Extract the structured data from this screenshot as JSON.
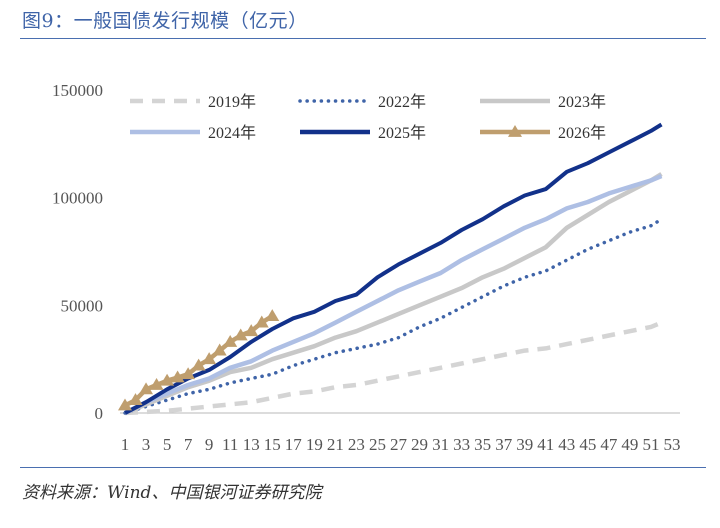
{
  "title": "图9：一般国债发行规模（亿元）",
  "source": "资料来源：Wind、中国银河证券研究院",
  "chart_data": {
    "type": "line",
    "ylim": [
      0,
      150000
    ],
    "yticks": [
      0,
      50000,
      100000,
      150000
    ],
    "xlim": [
      1,
      53
    ],
    "xticks": [
      1,
      3,
      5,
      7,
      9,
      11,
      13,
      15,
      17,
      19,
      21,
      23,
      25,
      27,
      29,
      31,
      33,
      35,
      37,
      39,
      41,
      43,
      45,
      47,
      49,
      51,
      53
    ],
    "grid": false,
    "legend_position": "top",
    "series": [
      {
        "name": "2019年",
        "color": "#d4d4d4",
        "style": "dashed",
        "x": [
          1,
          3,
          5,
          7,
          9,
          11,
          13,
          15,
          17,
          19,
          21,
          23,
          25,
          27,
          29,
          31,
          33,
          35,
          37,
          39,
          41,
          43,
          45,
          47,
          49,
          51,
          52
        ],
        "values": [
          0,
          500,
          1000,
          2000,
          3000,
          4000,
          5000,
          7000,
          9000,
          10000,
          12000,
          13000,
          15000,
          17000,
          19000,
          21000,
          23000,
          25000,
          27000,
          29000,
          30000,
          32000,
          34000,
          36000,
          38000,
          40000,
          42000
        ]
      },
      {
        "name": "2022年",
        "color": "#3f64a8",
        "style": "dotted",
        "x": [
          1,
          3,
          5,
          7,
          9,
          11,
          13,
          15,
          17,
          19,
          21,
          23,
          25,
          27,
          29,
          31,
          33,
          35,
          37,
          39,
          41,
          43,
          45,
          47,
          49,
          51,
          52
        ],
        "values": [
          0,
          3000,
          6000,
          9000,
          11000,
          14000,
          16000,
          18000,
          22000,
          25000,
          28000,
          30000,
          32000,
          35000,
          40000,
          44000,
          49000,
          54000,
          59000,
          63000,
          66000,
          71000,
          76000,
          80000,
          84000,
          87000,
          90000
        ]
      },
      {
        "name": "2023年",
        "color": "#c8c8c8",
        "style": "solid",
        "x": [
          1,
          3,
          5,
          7,
          9,
          11,
          13,
          15,
          17,
          19,
          21,
          23,
          25,
          27,
          29,
          31,
          33,
          35,
          37,
          39,
          41,
          43,
          45,
          47,
          49,
          51,
          52
        ],
        "values": [
          0,
          4000,
          8000,
          12000,
          15000,
          19000,
          21000,
          25000,
          28000,
          31000,
          35000,
          38000,
          42000,
          46000,
          50000,
          54000,
          58000,
          63000,
          67000,
          72000,
          77000,
          86000,
          92000,
          98000,
          103000,
          108000,
          111000
        ]
      },
      {
        "name": "2024年",
        "color": "#aebfe4",
        "style": "solid",
        "x": [
          1,
          3,
          5,
          7,
          9,
          11,
          13,
          15,
          17,
          19,
          21,
          23,
          25,
          27,
          29,
          31,
          33,
          35,
          37,
          39,
          41,
          43,
          45,
          47,
          49,
          51,
          52
        ],
        "values": [
          0,
          5000,
          9000,
          13000,
          16000,
          21000,
          24000,
          29000,
          33000,
          37000,
          42000,
          47000,
          52000,
          57000,
          61000,
          65000,
          71000,
          76000,
          81000,
          86000,
          90000,
          95000,
          98000,
          102000,
          105000,
          108000,
          110000
        ]
      },
      {
        "name": "2025年",
        "color": "#12318a",
        "style": "solid",
        "x": [
          1,
          3,
          5,
          7,
          9,
          11,
          13,
          15,
          17,
          19,
          21,
          23,
          25,
          27,
          29,
          31,
          33,
          35,
          37,
          39,
          41,
          43,
          45,
          47,
          49,
          51,
          52
        ],
        "values": [
          0,
          5000,
          11000,
          16000,
          20000,
          26000,
          33000,
          39000,
          44000,
          47000,
          52000,
          55000,
          63000,
          69000,
          74000,
          79000,
          85000,
          90000,
          96000,
          101000,
          104000,
          112000,
          116000,
          121000,
          126000,
          131000,
          134000
        ]
      },
      {
        "name": "2026年",
        "color": "#bf9e6e",
        "style": "solid-triangle",
        "x": [
          1,
          2,
          3,
          4,
          5,
          6,
          7,
          8,
          9,
          10,
          11,
          12,
          13,
          14,
          15
        ],
        "values": [
          3500,
          6000,
          11000,
          13000,
          15000,
          16500,
          18000,
          22000,
          25000,
          29000,
          33000,
          36000,
          38000,
          42000,
          45000
        ]
      }
    ]
  }
}
